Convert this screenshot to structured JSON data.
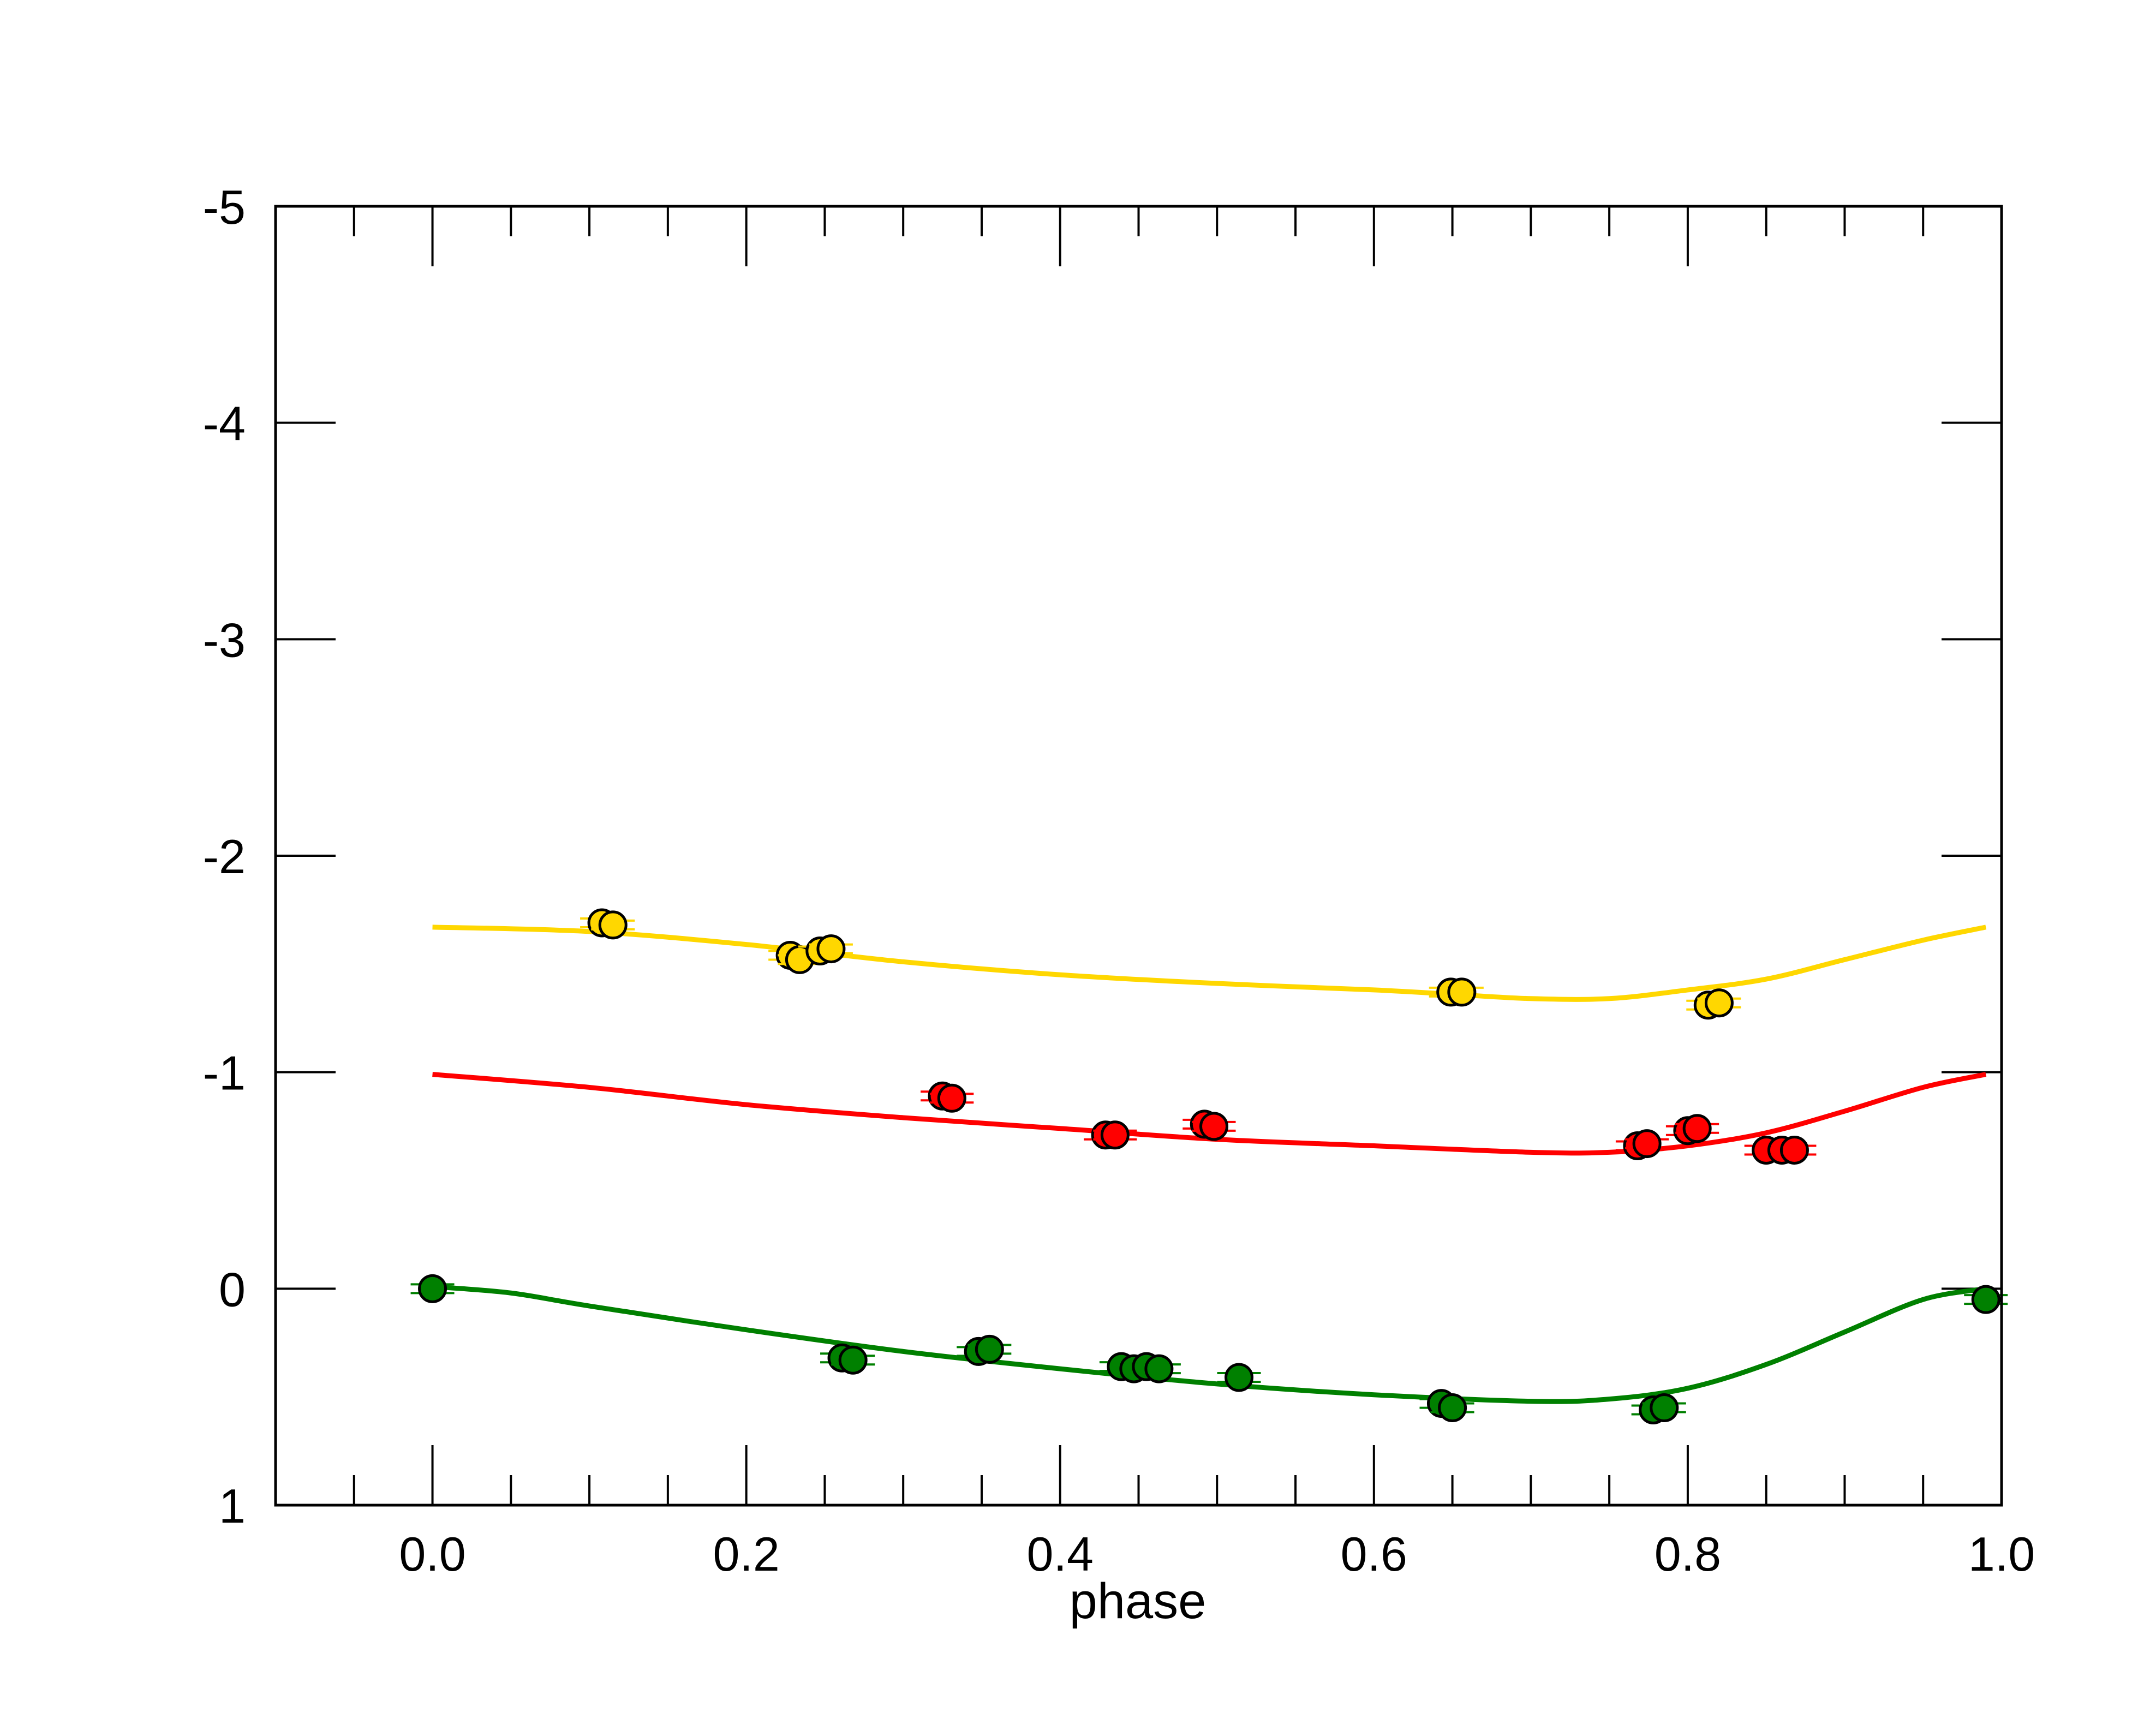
{
  "chart_data": {
    "type": "scatter",
    "xlabel": "phase",
    "ylabel": "",
    "xlim": [
      -0.1,
      1.0
    ],
    "ylim": [
      1,
      -5
    ],
    "y_inverted": true,
    "grid": false,
    "xticks": [
      0.0,
      0.2,
      0.4,
      0.6,
      0.8,
      1.0
    ],
    "xtick_labels": [
      "0.0",
      "0.2",
      "0.4",
      "0.6",
      "0.8",
      "1.0"
    ],
    "yticks": [
      -5,
      -4,
      -3,
      -2,
      -1,
      0,
      1
    ],
    "ytick_labels": [
      "-5",
      "-4",
      "-3",
      "-2",
      "-1",
      "0",
      "1"
    ],
    "series": [
      {
        "color": "#ffd700",
        "points": [
          {
            "x": 0.108,
            "y": -1.69
          },
          {
            "x": 0.115,
            "y": -1.68
          },
          {
            "x": 0.228,
            "y": -1.54
          },
          {
            "x": 0.234,
            "y": -1.52
          },
          {
            "x": 0.247,
            "y": -1.56
          },
          {
            "x": 0.254,
            "y": -1.57
          },
          {
            "x": 0.649,
            "y": -1.37
          },
          {
            "x": 0.656,
            "y": -1.37
          },
          {
            "x": 0.813,
            "y": -1.31
          },
          {
            "x": 0.82,
            "y": -1.32
          }
        ],
        "fit": [
          {
            "x": 0.0,
            "y": -1.67
          },
          {
            "x": 0.1,
            "y": -1.65
          },
          {
            "x": 0.2,
            "y": -1.59
          },
          {
            "x": 0.3,
            "y": -1.51
          },
          {
            "x": 0.4,
            "y": -1.45
          },
          {
            "x": 0.5,
            "y": -1.41
          },
          {
            "x": 0.6,
            "y": -1.38
          },
          {
            "x": 0.65,
            "y": -1.36
          },
          {
            "x": 0.7,
            "y": -1.34
          },
          {
            "x": 0.75,
            "y": -1.34
          },
          {
            "x": 0.8,
            "y": -1.38
          },
          {
            "x": 0.85,
            "y": -1.43
          },
          {
            "x": 0.9,
            "y": -1.52
          },
          {
            "x": 0.95,
            "y": -1.61
          },
          {
            "x": 0.99,
            "y": -1.67
          }
        ]
      },
      {
        "color": "#ff0000",
        "points": [
          {
            "x": 0.325,
            "y": -0.89
          },
          {
            "x": 0.331,
            "y": -0.88
          },
          {
            "x": 0.429,
            "y": -0.71
          },
          {
            "x": 0.435,
            "y": -0.71
          },
          {
            "x": 0.492,
            "y": -0.76
          },
          {
            "x": 0.498,
            "y": -0.75
          },
          {
            "x": 0.768,
            "y": -0.66
          },
          {
            "x": 0.774,
            "y": -0.67
          },
          {
            "x": 0.8,
            "y": -0.73
          },
          {
            "x": 0.806,
            "y": -0.74
          },
          {
            "x": 0.85,
            "y": -0.64
          },
          {
            "x": 0.86,
            "y": -0.64
          },
          {
            "x": 0.868,
            "y": -0.64
          }
        ],
        "fit": [
          {
            "x": 0.0,
            "y": -0.99
          },
          {
            "x": 0.1,
            "y": -0.93
          },
          {
            "x": 0.2,
            "y": -0.85
          },
          {
            "x": 0.3,
            "y": -0.79
          },
          {
            "x": 0.4,
            "y": -0.74
          },
          {
            "x": 0.5,
            "y": -0.69
          },
          {
            "x": 0.6,
            "y": -0.66
          },
          {
            "x": 0.7,
            "y": -0.63
          },
          {
            "x": 0.75,
            "y": -0.63
          },
          {
            "x": 0.8,
            "y": -0.66
          },
          {
            "x": 0.85,
            "y": -0.72
          },
          {
            "x": 0.9,
            "y": -0.82
          },
          {
            "x": 0.95,
            "y": -0.93
          },
          {
            "x": 0.99,
            "y": -0.99
          }
        ]
      },
      {
        "color": "#008000",
        "points": [
          {
            "x": 0.0,
            "y": 0.0
          },
          {
            "x": 0.261,
            "y": 0.32
          },
          {
            "x": 0.268,
            "y": 0.33
          },
          {
            "x": 0.348,
            "y": 0.29
          },
          {
            "x": 0.355,
            "y": 0.28
          },
          {
            "x": 0.439,
            "y": 0.36
          },
          {
            "x": 0.447,
            "y": 0.37
          },
          {
            "x": 0.455,
            "y": 0.36
          },
          {
            "x": 0.463,
            "y": 0.37
          },
          {
            "x": 0.514,
            "y": 0.41
          },
          {
            "x": 0.643,
            "y": 0.53
          },
          {
            "x": 0.65,
            "y": 0.55
          },
          {
            "x": 0.778,
            "y": 0.56
          },
          {
            "x": 0.785,
            "y": 0.55
          },
          {
            "x": 0.99,
            "y": 0.05
          }
        ],
        "fit": [
          {
            "x": 0.0,
            "y": -0.01
          },
          {
            "x": 0.05,
            "y": 0.02
          },
          {
            "x": 0.1,
            "y": 0.08
          },
          {
            "x": 0.2,
            "y": 0.19
          },
          {
            "x": 0.3,
            "y": 0.29
          },
          {
            "x": 0.4,
            "y": 0.37
          },
          {
            "x": 0.5,
            "y": 0.44
          },
          {
            "x": 0.6,
            "y": 0.49
          },
          {
            "x": 0.7,
            "y": 0.52
          },
          {
            "x": 0.75,
            "y": 0.51
          },
          {
            "x": 0.8,
            "y": 0.46
          },
          {
            "x": 0.85,
            "y": 0.35
          },
          {
            "x": 0.9,
            "y": 0.2
          },
          {
            "x": 0.95,
            "y": 0.05
          },
          {
            "x": 0.99,
            "y": 0.0
          }
        ]
      }
    ]
  }
}
